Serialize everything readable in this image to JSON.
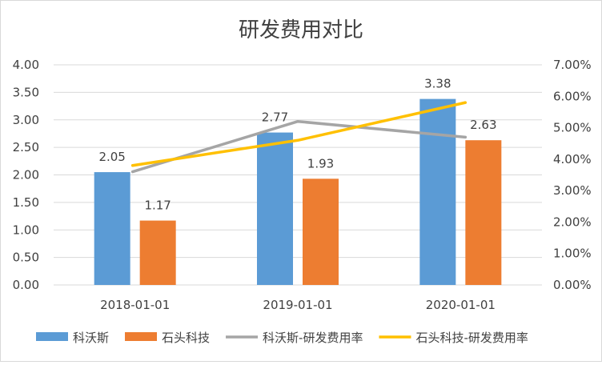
{
  "chart_data": {
    "type": "bar",
    "title": "研发费用对比",
    "categories": [
      "2018-01-01",
      "2019-01-01",
      "2020-01-01"
    ],
    "series": [
      {
        "name": "科沃斯",
        "kind": "bar",
        "axis": "left",
        "color": "#5b9bd5",
        "values": [
          2.05,
          2.77,
          3.38
        ],
        "labels": [
          "2.05",
          "2.77",
          "3.38"
        ]
      },
      {
        "name": "石头科技",
        "kind": "bar",
        "axis": "left",
        "color": "#ed7d31",
        "values": [
          1.17,
          1.93,
          2.63
        ],
        "labels": [
          "1.17",
          "1.93",
          "2.63"
        ]
      },
      {
        "name": "科沃斯-研发费用率",
        "kind": "line",
        "axis": "right",
        "color": "#a5a5a5",
        "values": [
          3.6,
          5.2,
          4.7
        ]
      },
      {
        "name": "石头科技-研发费用率",
        "kind": "line",
        "axis": "right",
        "color": "#ffc000",
        "values": [
          3.8,
          4.6,
          5.8
        ]
      }
    ],
    "y_left": {
      "min": 0,
      "max": 4,
      "ticks": [
        "0.00",
        "0.50",
        "1.00",
        "1.50",
        "2.00",
        "2.50",
        "3.00",
        "3.50",
        "4.00"
      ]
    },
    "y_right": {
      "min": 0,
      "max": 7,
      "ticks": [
        "0.00%",
        "1.00%",
        "2.00%",
        "3.00%",
        "4.00%",
        "5.00%",
        "6.00%",
        "7.00%"
      ]
    },
    "gridlines": true,
    "legend_position": "bottom"
  }
}
